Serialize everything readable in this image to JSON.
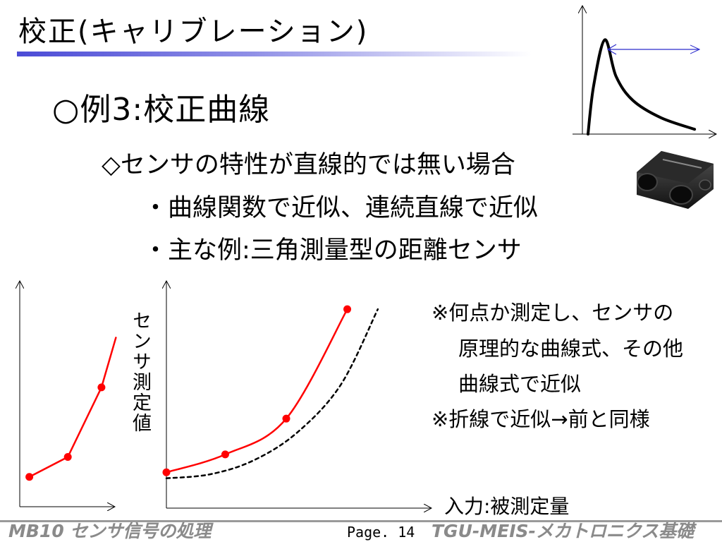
{
  "slide": {
    "title": "校正(キャリブレーション)",
    "heading": "○例3:校正曲線",
    "subheading": "◇センサの特性が直線的では無い場合",
    "bullets": [
      "・曲線関数で近似、連続直線で近似",
      "・主な例:三角測量型の距離センサ"
    ],
    "notes": [
      "※何点か測定し、センサの",
      "原理的な曲線式、その他",
      "曲線式で近似",
      "※折線で近似→前と同様"
    ]
  },
  "main_chart": {
    "ylabel": "センサ測定値",
    "xlabel": "入力:被測定量"
  },
  "footer": {
    "left": "MB10 センサ信号の処理",
    "page": "Page. 14",
    "right": "TGU-MEIS-メカトロニクス基礎"
  },
  "chart_data": [
    {
      "type": "line",
      "description_role": "piecewise-linear approximation (left small plot)",
      "series": [
        {
          "values_x": [
            0.1,
            0.5,
            0.85,
            1.0
          ],
          "values_y": [
            0.15,
            0.25,
            0.6,
            0.85
          ],
          "color": "#ff0000",
          "markers_count": 3
        }
      ],
      "xlim": [
        0,
        1.1
      ],
      "ylim": [
        0,
        1.1
      ]
    },
    {
      "type": "line",
      "description_role": "main calibration curve",
      "series": [
        {
          "values_x": [
            0,
            0.27,
            0.55,
            0.83
          ],
          "values_y": [
            0.18,
            0.27,
            0.45,
            1.0
          ],
          "color": "#ff0000",
          "style": "solid",
          "markers": true
        },
        {
          "values_x": [
            0,
            0.2,
            0.4,
            0.6,
            0.8,
            0.97
          ],
          "values_y": [
            0.15,
            0.17,
            0.24,
            0.38,
            0.62,
            1.0
          ],
          "color": "#000000",
          "style": "dashed",
          "markers": false
        }
      ],
      "xlim": [
        0,
        1.1
      ],
      "ylim": [
        0,
        1.1
      ]
    },
    {
      "type": "line",
      "description_role": "sensor characteristic (top-right inset)",
      "series": [
        {
          "values_x": [
            0.05,
            0.1,
            0.2,
            0.3,
            0.45,
            0.7,
            1.0
          ],
          "values_y": [
            0.0,
            0.5,
            0.98,
            0.6,
            0.35,
            0.17,
            0.05
          ],
          "color": "#000000",
          "style": "solid"
        }
      ],
      "xlim": [
        0,
        1.1
      ],
      "ylim": [
        0,
        1.1
      ]
    }
  ],
  "colors": {
    "accent": "#4b4bd6",
    "curve_red": "#ff0000",
    "footer_gray": "#8a8a8a"
  },
  "icons": {
    "sensor": "distance-sensor-photo"
  }
}
